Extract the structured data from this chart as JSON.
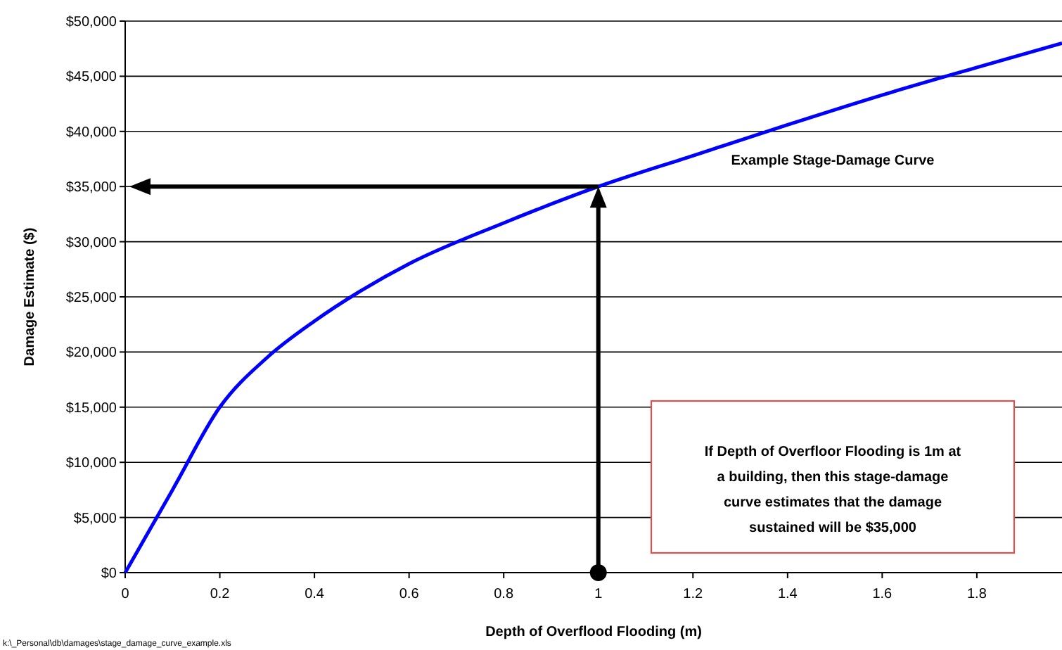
{
  "chart_data": {
    "type": "line",
    "xlabel": "Depth of Overflood Flooding (m)",
    "ylabel": "Damage Estimate ($)",
    "x": [
      0,
      0.1,
      0.2,
      0.3,
      0.4,
      0.5,
      0.6,
      0.8,
      1.0,
      1.2,
      1.4,
      1.6,
      1.8,
      1.98
    ],
    "series": [
      {
        "color": "#0000ff",
        "values": [
          0,
          7500,
          15000,
          19500,
          22800,
          25600,
          28000,
          31700,
          35000,
          37800,
          40600,
          43300,
          45800,
          48000
        ]
      }
    ],
    "xlim": [
      0,
      1.98
    ],
    "xticks": [
      0,
      0.2,
      0.4,
      0.6,
      0.8,
      1,
      1.2,
      1.4,
      1.6,
      1.8
    ],
    "ylim": [
      0,
      50000
    ],
    "yticks": [
      {
        "value": 0,
        "label": "$0"
      },
      {
        "value": 5000,
        "label": "$5,000"
      },
      {
        "value": 10000,
        "label": "$10,000"
      },
      {
        "value": 15000,
        "label": "$15,000"
      },
      {
        "value": 20000,
        "label": "$20,000"
      },
      {
        "value": 25000,
        "label": "$25,000"
      },
      {
        "value": 30000,
        "label": "$30,000"
      },
      {
        "value": 35000,
        "label": "$35,000"
      },
      {
        "value": 40000,
        "label": "$40,000"
      },
      {
        "value": 45000,
        "label": "$45,000"
      },
      {
        "value": 50000,
        "label": "$50,000"
      }
    ],
    "grid": "y",
    "marker": "none",
    "line_style": "solid",
    "ref_lines": [
      {
        "axis": "x",
        "value": 1
      },
      {
        "axis": "y",
        "value": 35000
      }
    ],
    "annotations": [
      "Example Stage-Damage Curve",
      "If Depth of Overfloor Flooding is 1m at a building, then this stage-damage curve estimates that the damage sustained will be $35,000",
      "k:\\_Personal\\db\\damages\\stage_damage_curve_example.xls"
    ]
  }
}
